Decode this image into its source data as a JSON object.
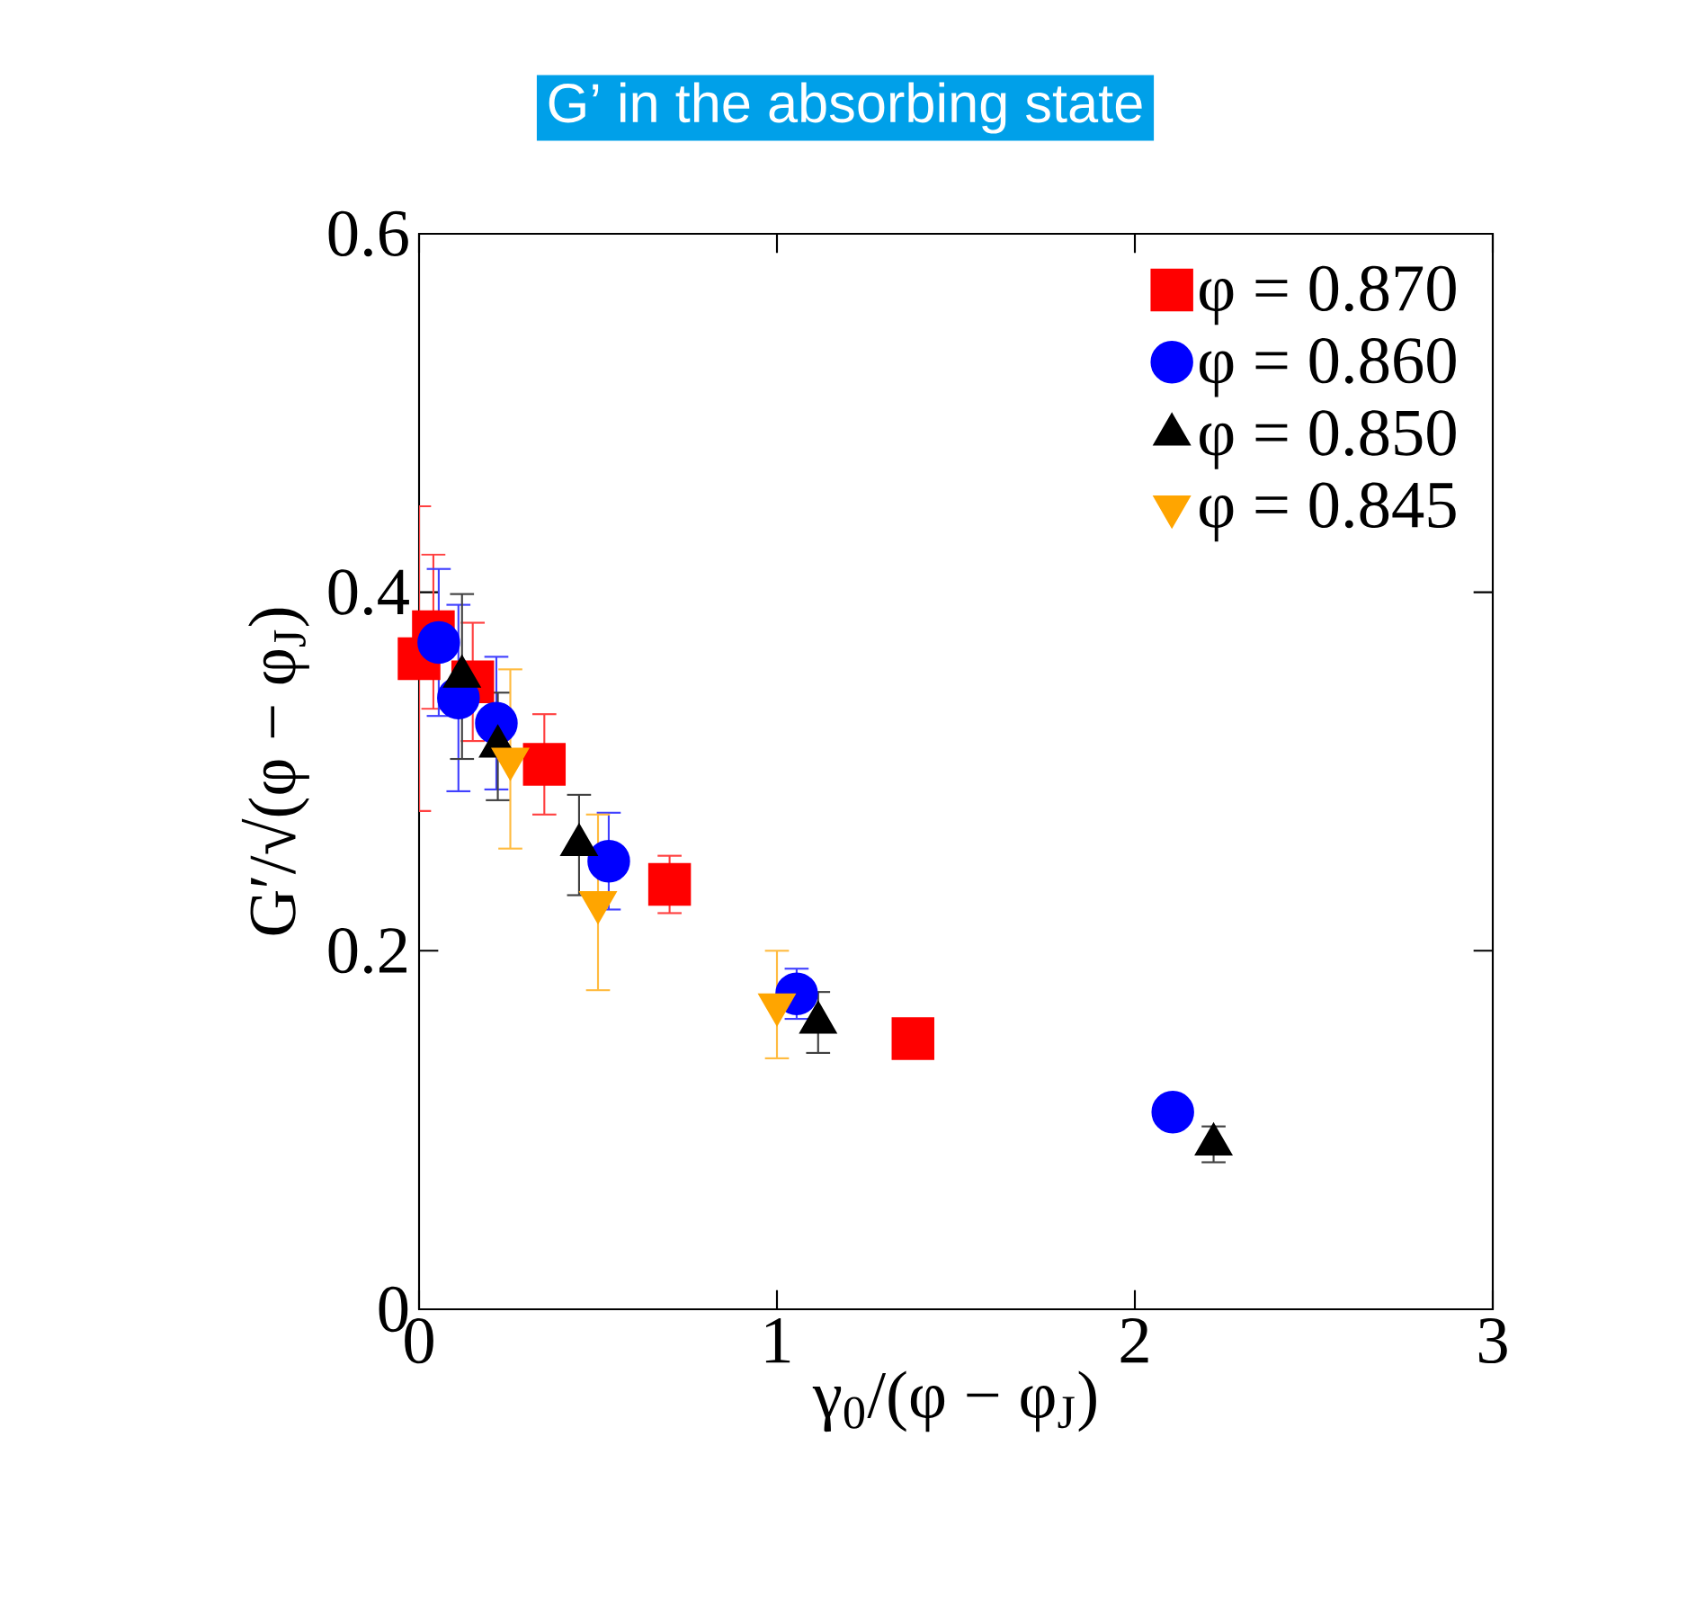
{
  "chart_data": {
    "type": "scatter",
    "title": "G’ in the absorbing state",
    "xlabel": "γ$_{0}$/(φ − φ$_{J}$)",
    "ylabel": "G′/√(φ − φ$_{J}$)",
    "xlim": [
      0,
      3
    ],
    "ylim": [
      0,
      0.6
    ],
    "xticks": [
      0,
      1,
      2,
      3
    ],
    "yticks": [
      0,
      0.2,
      0.4,
      0.6
    ],
    "grid": false,
    "legend": "top right",
    "series": [
      {
        "name": "φ = 0.870",
        "color": "#ff0000",
        "marker": "square",
        "x": [
          0.0,
          0.04,
          0.15,
          0.35,
          0.7,
          1.38
        ],
        "values": [
          0.363,
          0.378,
          0.35,
          0.304,
          0.237,
          0.151
        ],
        "errors": [
          0.085,
          0.043,
          0.033,
          0.028,
          0.016,
          null
        ]
      },
      {
        "name": "φ = 0.860",
        "color": "#0000ff",
        "marker": "circle",
        "x": [
          0.055,
          0.11,
          0.216,
          0.53,
          1.055,
          2.106
        ],
        "values": [
          0.372,
          0.341,
          0.327,
          0.25,
          0.176,
          0.11
        ],
        "errors": [
          0.041,
          0.052,
          0.037,
          0.027,
          0.014,
          null
        ]
      },
      {
        "name": "φ = 0.850",
        "color": "#000000",
        "marker": "triangle",
        "x": [
          0.12,
          0.22,
          0.447,
          1.115,
          2.22
        ],
        "values": [
          0.353,
          0.314,
          0.259,
          0.16,
          0.092
        ],
        "errors": [
          0.046,
          0.03,
          0.028,
          0.017,
          0.01
        ]
      },
      {
        "name": "φ = 0.845",
        "color": "#ffa500",
        "marker": "triangle down",
        "x": [
          0.255,
          0.5,
          1.0
        ],
        "values": [
          0.307,
          0.227,
          0.17
        ],
        "errors": [
          0.05,
          0.049,
          0.03
        ]
      }
    ]
  }
}
